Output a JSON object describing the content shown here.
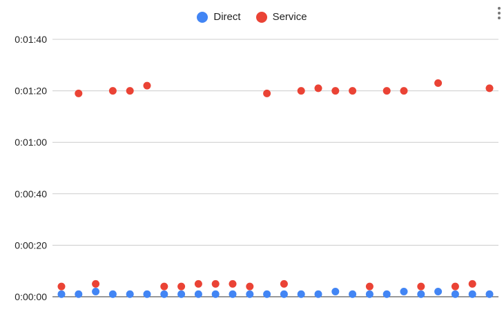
{
  "chart_data": {
    "type": "scatter",
    "title": "",
    "xlabel": "",
    "ylabel": "",
    "ylim": [
      0,
      100
    ],
    "yticks": [
      {
        "value": 0,
        "label": "0:00:00"
      },
      {
        "value": 20,
        "label": "0:00:20"
      },
      {
        "value": 40,
        "label": "0:00:40"
      },
      {
        "value": 60,
        "label": "0:01:00"
      },
      {
        "value": 80,
        "label": "0:01:20"
      },
      {
        "value": 100,
        "label": "0:01:40"
      }
    ],
    "grid": true,
    "legend": "top-center",
    "x": [
      1,
      2,
      3,
      4,
      5,
      6,
      7,
      8,
      9,
      10,
      11,
      12,
      13,
      14,
      15,
      16,
      17,
      18,
      19,
      20,
      21,
      22,
      23,
      24,
      25,
      26
    ],
    "series": [
      {
        "name": "Direct",
        "color": "#4285f4",
        "values": [
          1,
          1,
          2,
          1,
          1,
          1,
          1,
          1,
          1,
          1,
          1,
          1,
          1,
          1,
          1,
          1,
          2,
          1,
          1,
          1,
          2,
          1,
          2,
          1,
          1,
          1
        ]
      },
      {
        "name": "Service",
        "color": "#ea4335",
        "values": [
          4,
          79,
          5,
          80,
          80,
          82,
          4,
          4,
          5,
          5,
          5,
          4,
          79,
          5,
          80,
          81,
          80,
          80,
          4,
          80,
          80,
          4,
          83,
          4,
          5,
          81
        ]
      }
    ]
  }
}
